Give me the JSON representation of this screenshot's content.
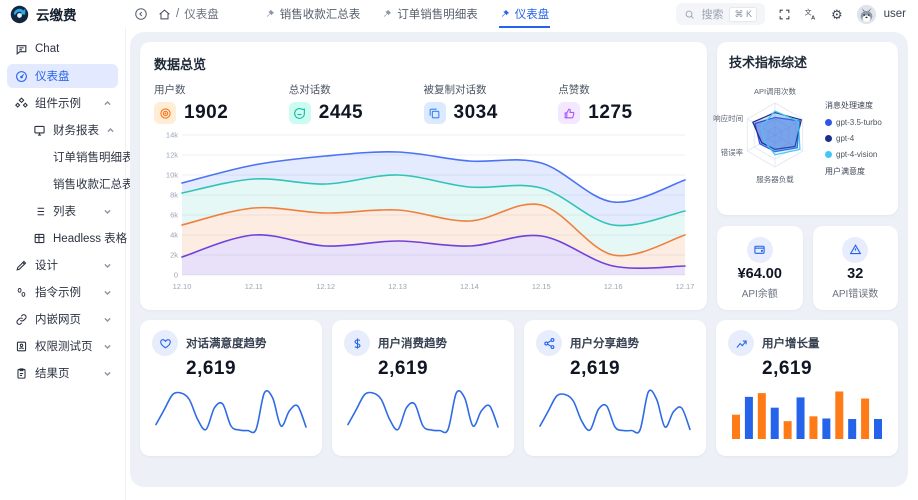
{
  "header": {
    "logo_text": "云缴费",
    "breadcrumb": {
      "separator": "/",
      "current": "仪表盘"
    },
    "tabs": [
      {
        "label": "销售收款汇总表",
        "active": false
      },
      {
        "label": "订单销售明细表",
        "active": false
      },
      {
        "label": "仪表盘",
        "active": true
      }
    ],
    "search": {
      "placeholder": "搜索",
      "shortcut": "⌘ K"
    },
    "user_name": "user"
  },
  "sidebar": {
    "items": [
      {
        "label": "Chat",
        "icon": "chat-icon",
        "level": 0,
        "chevron": null,
        "active": false
      },
      {
        "label": "仪表盘",
        "icon": "gauge-icon",
        "level": 0,
        "chevron": null,
        "active": true
      },
      {
        "label": "组件示例",
        "icon": "components-icon",
        "level": 0,
        "chevron": "up",
        "active": false
      },
      {
        "label": "财务报表",
        "icon": "report-icon",
        "level": 1,
        "chevron": "up",
        "active": false
      },
      {
        "label": "订单销售明细表",
        "icon": null,
        "level": 2,
        "chevron": null,
        "active": false
      },
      {
        "label": "销售收款汇总表",
        "icon": null,
        "level": 2,
        "chevron": null,
        "active": false
      },
      {
        "label": "列表",
        "icon": "list-icon",
        "level": 1,
        "chevron": "down",
        "active": false
      },
      {
        "label": "Headless 表格",
        "icon": "table-icon",
        "level": 1,
        "chevron": "down",
        "active": false
      },
      {
        "label": "设计",
        "icon": "design-icon",
        "level": 0,
        "chevron": "down",
        "active": false
      },
      {
        "label": "指令示例",
        "icon": "command-icon",
        "level": 0,
        "chevron": "down",
        "active": false
      },
      {
        "label": "内嵌网页",
        "icon": "embed-icon",
        "level": 0,
        "chevron": "down",
        "active": false
      },
      {
        "label": "权限测试页",
        "icon": "permission-icon",
        "level": 0,
        "chevron": "down",
        "active": false
      },
      {
        "label": "结果页",
        "icon": "result-icon",
        "level": 0,
        "chevron": "down",
        "active": false
      }
    ]
  },
  "overview": {
    "title": "数据总览",
    "stats": [
      {
        "label": "用户数",
        "value": "1902",
        "icon": "target-icon",
        "color": "#f97316",
        "bg": "#ffedd5"
      },
      {
        "label": "总对话数",
        "value": "2445",
        "icon": "message-icon",
        "color": "#14b8a6",
        "bg": "#ccfbf1"
      },
      {
        "label": "被复制对话数",
        "value": "3034",
        "icon": "copy-icon",
        "color": "#3b82f6",
        "bg": "#dbeafe"
      },
      {
        "label": "点赞数",
        "value": "1275",
        "icon": "thumbs-up-icon",
        "color": "#a855f7",
        "bg": "#f3e8ff"
      }
    ]
  },
  "tech_panel": {
    "title": "技术指标综述",
    "right_axis_top": "消息处理速度",
    "right_axis_bottom": "用户满意度",
    "legend": [
      {
        "label": "gpt-3.5-turbo",
        "color": "#2f54eb"
      },
      {
        "label": "gpt-4",
        "color": "#1d2d8a"
      },
      {
        "label": "gpt-4-vision",
        "color": "#41c8f5"
      }
    ]
  },
  "api_cards": [
    {
      "value": "¥64.00",
      "label": "API余额",
      "icon": "wallet-icon"
    },
    {
      "value": "32",
      "label": "API错误数",
      "icon": "warning-icon"
    }
  ],
  "trend_cards": [
    {
      "title": "对话满意度趋势",
      "value": "2,619",
      "icon": "heart-icon",
      "chart": "satisfaction-trend"
    },
    {
      "title": "用户消费趋势",
      "value": "2,619",
      "icon": "dollar-icon",
      "chart": "consumption-trend"
    },
    {
      "title": "用户分享趋势",
      "value": "2,619",
      "icon": "share-icon",
      "chart": "share-trend"
    },
    {
      "title": "用户增长量",
      "value": "2,619",
      "icon": "growth-icon",
      "chart": "growth-bars"
    }
  ],
  "chart_data": [
    {
      "id": "overview-area",
      "type": "area",
      "x": [
        "12.10",
        "12.11",
        "12.12",
        "12.13",
        "12.14",
        "12.15",
        "12.16",
        "12.17"
      ],
      "ylim": [
        0,
        14000
      ],
      "yticks": [
        "0",
        "2k",
        "4k",
        "6k",
        "8k",
        "10k",
        "12k",
        "14k"
      ],
      "grid": true,
      "series": [
        {
          "name": "series-purple",
          "color": "#6d42d8",
          "band_alpha": 0.16,
          "values": [
            1800,
            4000,
            2900,
            3400,
            2900,
            3900,
            900,
            900
          ]
        },
        {
          "name": "series-orange",
          "color": "#f07f3c",
          "band_alpha": 0.15,
          "values": [
            5000,
            6700,
            6200,
            6500,
            5400,
            7000,
            2000,
            4000
          ]
        },
        {
          "name": "series-teal",
          "color": "#2fc5b5",
          "band_alpha": 0.12,
          "values": [
            8200,
            9600,
            9100,
            10000,
            8800,
            8700,
            5000,
            6400
          ]
        },
        {
          "name": "series-blue",
          "color": "#4a72f5",
          "band_alpha": 0.14,
          "values": [
            9200,
            11000,
            11900,
            12300,
            11400,
            11200,
            7300,
            9500
          ]
        }
      ]
    },
    {
      "id": "tech-radar",
      "type": "radar",
      "axes": [
        "API调用次数",
        "消息处理速度",
        "用户满意度",
        "服务器负载",
        "错误率",
        "响应时间"
      ],
      "max": 100,
      "series": [
        {
          "name": "gpt-3.5-turbo",
          "color": "#2f54eb",
          "fill": "rgba(77,119,255,0.55)",
          "values": [
            55,
            88,
            80,
            52,
            55,
            72
          ]
        },
        {
          "name": "gpt-4",
          "color": "#1d2d8a",
          "fill": "rgba(29,45,138,0.18)",
          "values": [
            70,
            95,
            72,
            45,
            48,
            80
          ]
        },
        {
          "name": "gpt-4-vision",
          "color": "#41c8f5",
          "fill": "rgba(65,200,245,0.18)",
          "values": [
            75,
            85,
            90,
            62,
            38,
            50
          ]
        }
      ]
    },
    {
      "id": "satisfaction-trend",
      "type": "line",
      "color": "#2e6be6",
      "values": [
        25,
        55,
        85,
        88,
        75,
        35,
        15,
        58,
        66,
        22,
        14,
        13,
        15,
        88,
        78,
        22,
        52,
        62,
        20
      ]
    },
    {
      "id": "consumption-trend",
      "type": "line",
      "color": "#2e6be6",
      "values": [
        25,
        55,
        85,
        88,
        75,
        35,
        15,
        58,
        66,
        22,
        14,
        13,
        15,
        88,
        78,
        22,
        52,
        62,
        20
      ]
    },
    {
      "id": "share-trend",
      "type": "line",
      "color": "#2e6be6",
      "values": [
        22,
        52,
        82,
        85,
        72,
        32,
        14,
        55,
        62,
        20,
        13,
        13,
        14,
        90,
        75,
        20,
        50,
        58,
        15
      ]
    },
    {
      "id": "growth-bars",
      "type": "bar",
      "values": [
        45,
        78,
        85,
        58,
        33,
        77,
        42,
        38,
        88,
        37,
        75,
        37
      ],
      "colors": [
        "#ff7b17",
        "#2563eb"
      ]
    }
  ]
}
